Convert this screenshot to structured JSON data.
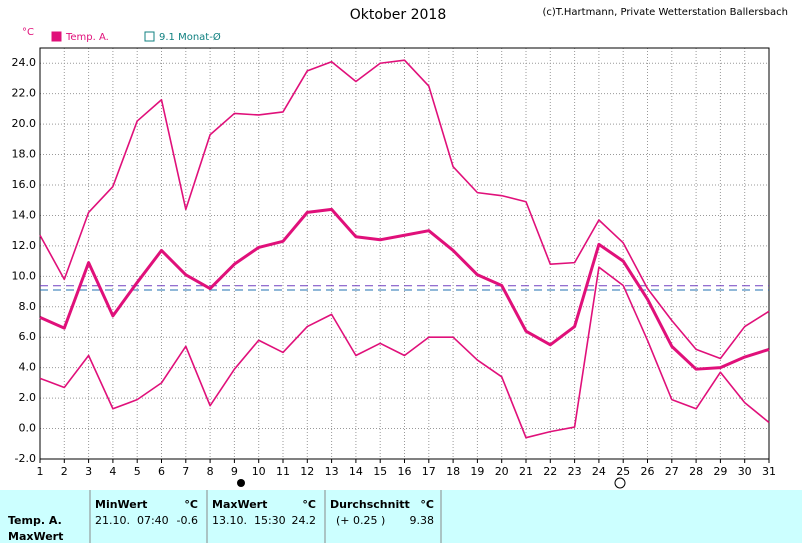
{
  "chart_data": {
    "type": "line",
    "title": "Oktober 2018",
    "copyright": "(c)T.Hartmann, Private Wetterstation Ballersbach",
    "y_unit": "°C",
    "x": [
      1,
      2,
      3,
      4,
      5,
      6,
      7,
      8,
      9,
      10,
      11,
      12,
      13,
      14,
      15,
      16,
      17,
      18,
      19,
      20,
      21,
      22,
      23,
      24,
      25,
      26,
      27,
      28,
      29,
      30,
      31
    ],
    "series": [
      {
        "color": "#e0107a",
        "thick": false,
        "values": [
          12.7,
          9.8,
          14.2,
          15.9,
          20.2,
          21.6,
          14.4,
          19.3,
          20.7,
          20.6,
          20.8,
          23.5,
          24.1,
          22.8,
          24.0,
          24.2,
          22.5,
          17.2,
          15.5,
          15.3,
          14.9,
          10.8,
          10.9,
          13.7,
          12.2,
          9.2,
          7.1,
          5.2,
          4.6,
          6.7,
          7.7
        ]
      },
      {
        "color": "#e0107a",
        "thick": true,
        "values": [
          7.3,
          6.6,
          10.9,
          7.4,
          9.6,
          11.7,
          10.1,
          9.2,
          10.8,
          11.9,
          12.3,
          14.2,
          14.4,
          12.6,
          12.4,
          12.7,
          13.0,
          11.7,
          10.1,
          9.4,
          6.4,
          5.5,
          6.7,
          12.1,
          11.0,
          8.5,
          5.4,
          3.9,
          4.0,
          4.7,
          5.2
        ]
      },
      {
        "color": "#e0107a",
        "thick": false,
        "values": [
          3.3,
          2.7,
          4.8,
          1.3,
          1.9,
          3.0,
          5.4,
          1.5,
          3.9,
          5.8,
          5.0,
          6.7,
          7.5,
          4.8,
          5.6,
          4.8,
          6.0,
          6.0,
          4.5,
          3.4,
          -0.6,
          -0.2,
          0.1,
          10.6,
          9.4,
          5.8,
          1.9,
          1.3,
          3.7,
          1.7,
          0.4
        ]
      }
    ],
    "reference_lines": [
      {
        "value": 9.38,
        "color": "#7040c0"
      },
      {
        "value": 9.1,
        "color": "#2070b0"
      }
    ],
    "legend": [
      {
        "label": "Temp. A.",
        "color": "#e0107a",
        "filled": true
      },
      {
        "label": "9.1 Monat-Ø",
        "color": "#108080",
        "filled": false
      }
    ],
    "xlim": [
      1,
      31
    ],
    "xticks": [
      1,
      2,
      3,
      4,
      5,
      6,
      7,
      8,
      9,
      10,
      11,
      12,
      13,
      14,
      15,
      16,
      17,
      18,
      19,
      20,
      21,
      22,
      23,
      24,
      25,
      26,
      27,
      28,
      29,
      30,
      31
    ],
    "ylim": [
      -2,
      25
    ],
    "yticks": [
      {
        "value": -2,
        "label": "-2.0"
      },
      {
        "value": 0,
        "label": "0.0"
      },
      {
        "value": 2,
        "label": "2.0"
      },
      {
        "value": 4,
        "label": "4.0"
      },
      {
        "value": 6,
        "label": "6.0"
      },
      {
        "value": 8,
        "label": "8.0"
      },
      {
        "value": 10,
        "label": "10.0"
      },
      {
        "value": 12,
        "label": "12.0"
      },
      {
        "value": 14,
        "label": "14.0"
      },
      {
        "value": 16,
        "label": "16.0"
      },
      {
        "value": 18,
        "label": "18.0"
      },
      {
        "value": 20,
        "label": "20.0"
      },
      {
        "value": 22,
        "label": "22.0"
      },
      {
        "value": 24,
        "label": "24.0"
      }
    ],
    "grid": true
  },
  "table": {
    "row_label": "Temp. A.",
    "row_label_2": "MaxWert",
    "headers": [
      "MinWert",
      "°C",
      "MaxWert",
      "°C",
      "Durchschnitt",
      "°C"
    ],
    "cells": [
      "21.10.  07:40",
      "-0.6",
      "13.10.  15:30",
      "24.2",
      "(+ 0.25 )",
      "9.38"
    ]
  }
}
